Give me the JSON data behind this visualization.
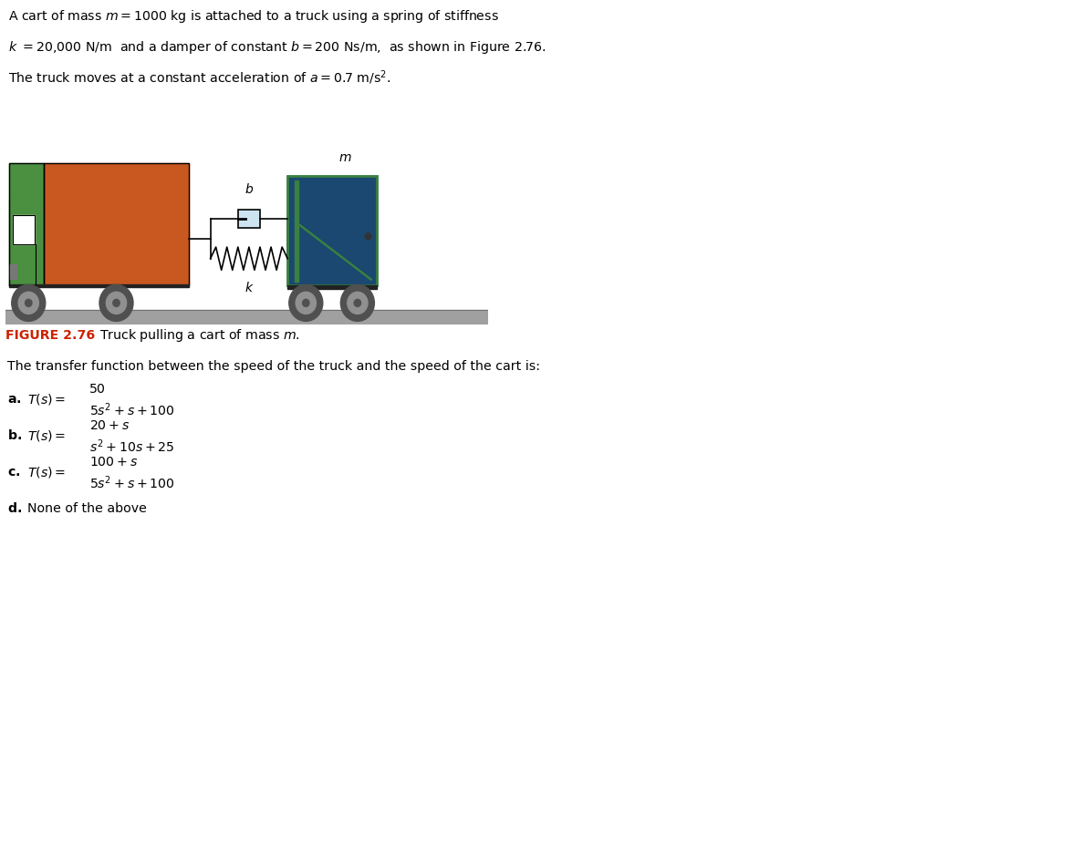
{
  "bg_color": "#cde4f0",
  "white_bg": "#ffffff",
  "truck_body_color": "#c85820",
  "truck_cab_color": "#4a9040",
  "cart_body_color": "#1a4870",
  "cart_border_color": "#3a8040",
  "wheel_outer": "#505050",
  "wheel_mid": "#909090",
  "wheel_inner": "#505050",
  "road_color": "#a0a0a0",
  "fig_label_color": "#cc2200",
  "line1": "A cart of mass $m = 1000$ kg is attached to a truck using a spring of stiffness",
  "line2": "$k\\ = 20{,}000$ N/m  and a damper of constant $b = 200$ Ns/m,  as shown in Figure 2.76.",
  "line3": "The truck moves at a constant acceleration of $a = 0.7$ m/s$^2$.",
  "fig_label": "FIGURE 2.76",
  "fig_caption": "Truck pulling a cart of mass $m$.",
  "q_text": "The transfer function between the speed of the truck and the speed of the cart is:",
  "opt_a_num": "50",
  "opt_a_den": "$5s^2 + s + 100$",
  "opt_b_num": "$20 + s$",
  "opt_b_den": "$s^2 + 10s + 25$",
  "opt_c_num": "$100 + s$",
  "opt_c_den": "$5s^2 + s + 100$",
  "opt_d": "None of the above"
}
